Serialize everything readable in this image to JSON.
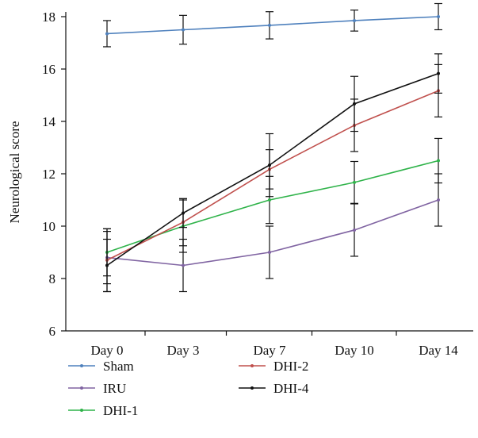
{
  "chart_data": {
    "type": "line",
    "title": "",
    "xlabel": "",
    "ylabel": "Neurological score",
    "ylim": [
      6,
      18
    ],
    "yticks": [
      6,
      8,
      10,
      12,
      14,
      16,
      18
    ],
    "categories": [
      "Day 0",
      "Day 3",
      "Day 7",
      "Day 10",
      "Day 14"
    ],
    "grid": false,
    "legend_position": "bottom",
    "series": [
      {
        "name": "Sham",
        "color": "#4f81bd",
        "values": [
          17.35,
          17.5,
          17.67,
          17.85,
          18.0
        ],
        "errors": [
          0.5,
          0.55,
          0.52,
          0.4,
          0.5
        ]
      },
      {
        "name": "IRU",
        "color": "#8064a2",
        "values": [
          8.8,
          8.5,
          9.0,
          9.85,
          11.0
        ],
        "errors": [
          1.0,
          1.0,
          1.0,
          1.0,
          1.0
        ]
      },
      {
        "name": "DHI-1",
        "color": "#2fb34a",
        "values": [
          9.0,
          10.0,
          11.0,
          11.67,
          12.5
        ],
        "errors": [
          0.9,
          1.0,
          0.9,
          0.8,
          0.85
        ]
      },
      {
        "name": "DHI-2",
        "color": "#c0504d",
        "values": [
          8.7,
          10.15,
          12.17,
          13.85,
          15.17
        ],
        "errors": [
          1.2,
          0.9,
          0.75,
          1.0,
          1.0
        ]
      },
      {
        "name": "DHI-4",
        "color": "#111111",
        "values": [
          8.5,
          10.5,
          12.33,
          14.67,
          15.83
        ],
        "errors": [
          1.0,
          0.55,
          1.2,
          1.05,
          0.75
        ]
      }
    ]
  }
}
